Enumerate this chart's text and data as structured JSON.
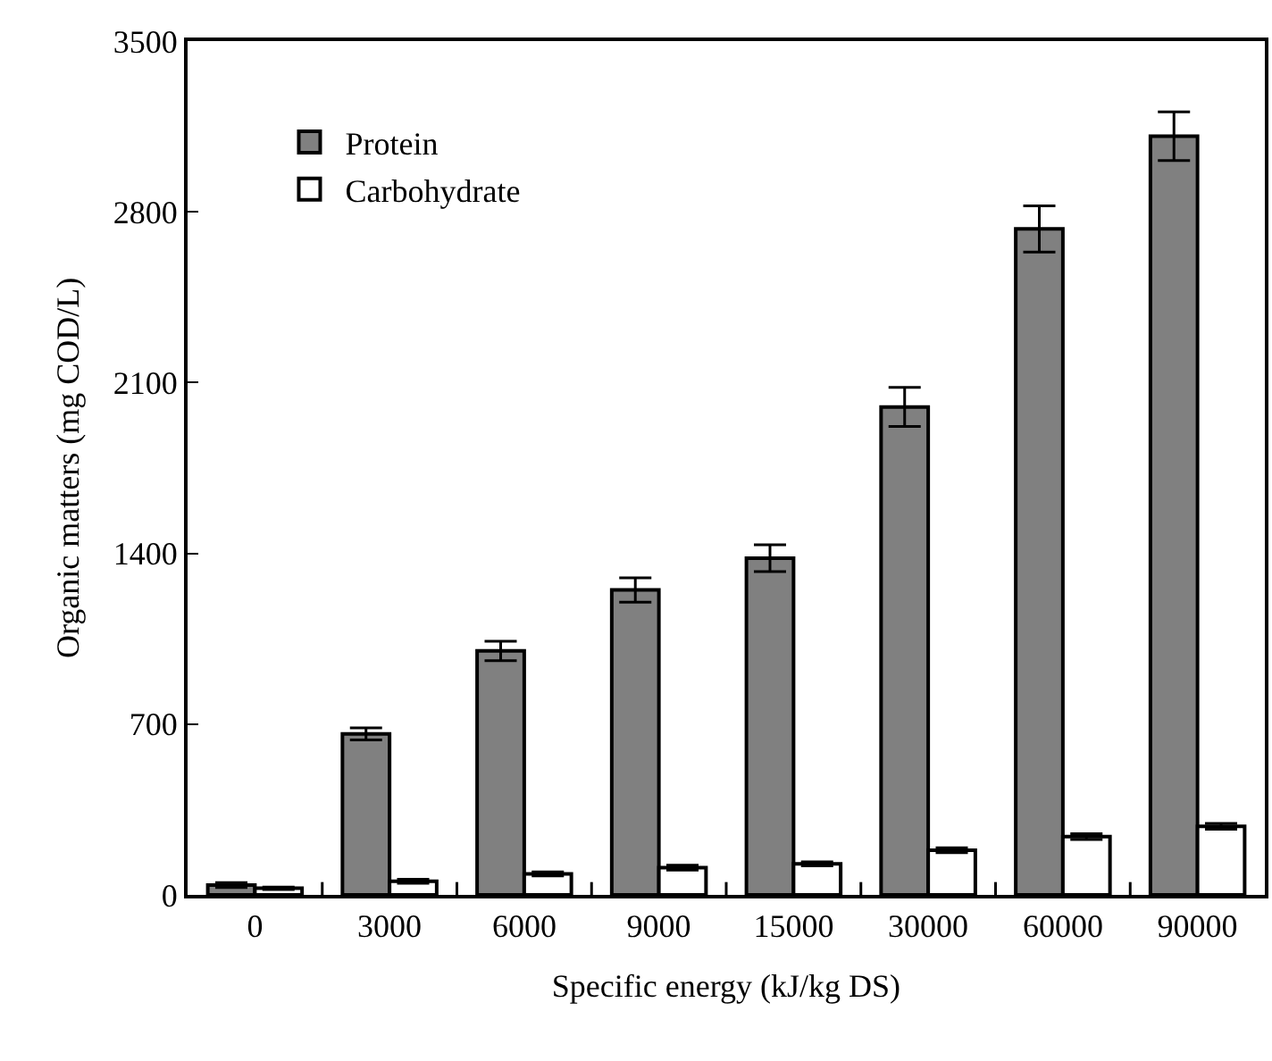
{
  "chart_data": {
    "type": "bar",
    "xlabel": "Specific energy (kJ/kg DS)",
    "ylabel": "Organic matters (mg COD/L)",
    "categories": [
      "0",
      "3000",
      "6000",
      "9000",
      "15000",
      "30000",
      "60000",
      "90000"
    ],
    "series": [
      {
        "name": "Protein",
        "color": "#808080",
        "values": [
          40,
          660,
          1000,
          1250,
          1380,
          2000,
          2730,
          3110
        ],
        "errors": [
          10,
          25,
          40,
          50,
          55,
          80,
          95,
          100
        ]
      },
      {
        "name": "Carbohydrate",
        "color": "#ffffff",
        "values": [
          27,
          56,
          86,
          112,
          127,
          183,
          239,
          281
        ],
        "errors": [
          5,
          8,
          8,
          10,
          8,
          10,
          12,
          12
        ]
      }
    ],
    "ylim": [
      0,
      3500
    ],
    "yticks": [
      0,
      700,
      1400,
      2100,
      2800,
      3500
    ],
    "grid": false,
    "legend": "top left"
  }
}
